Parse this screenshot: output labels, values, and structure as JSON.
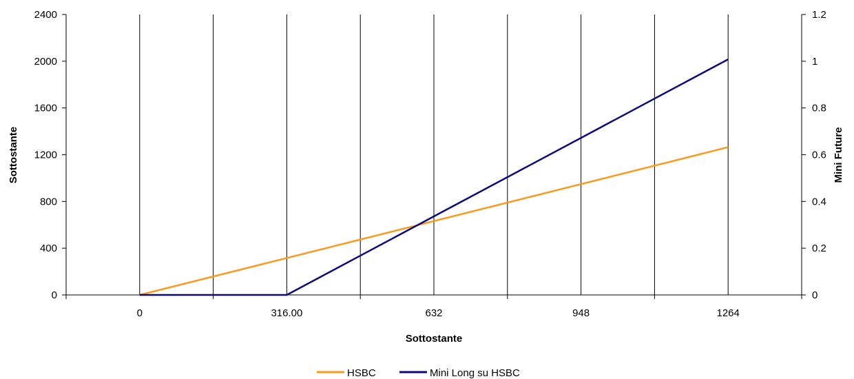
{
  "chart_data": {
    "type": "line",
    "title": "",
    "xlabel": "Sottostante",
    "ylabel": "Sottostante",
    "y2label": "Mini Future",
    "x_tick_labels": [
      "0",
      "316.00",
      "632",
      "948",
      "1264"
    ],
    "y_tick_labels": [
      "0",
      "400",
      "800",
      "1200",
      "1600",
      "2000",
      "2400"
    ],
    "y2_tick_labels": [
      "0",
      "0.2",
      "0.4",
      "0.6",
      "0.8",
      "1",
      "1.2"
    ],
    "xlim": [
      -158,
      1422
    ],
    "ylim": [
      0,
      2400
    ],
    "y2lim": [
      0,
      1.2
    ],
    "grid": "vertical",
    "legend_position": "bottom",
    "series": [
      {
        "name": "HSBC",
        "axis": "left",
        "color": "#F79A1E",
        "x": [
          0,
          316,
          632,
          948,
          1264
        ],
        "y": [
          0,
          316,
          632,
          948,
          1264
        ]
      },
      {
        "name": "Mini Long su HSBC",
        "axis": "right",
        "color": "#0A0A78",
        "x": [
          0,
          316,
          632,
          948,
          1264
        ],
        "y": [
          0,
          0,
          0.336,
          0.672,
          1.008
        ]
      }
    ]
  }
}
